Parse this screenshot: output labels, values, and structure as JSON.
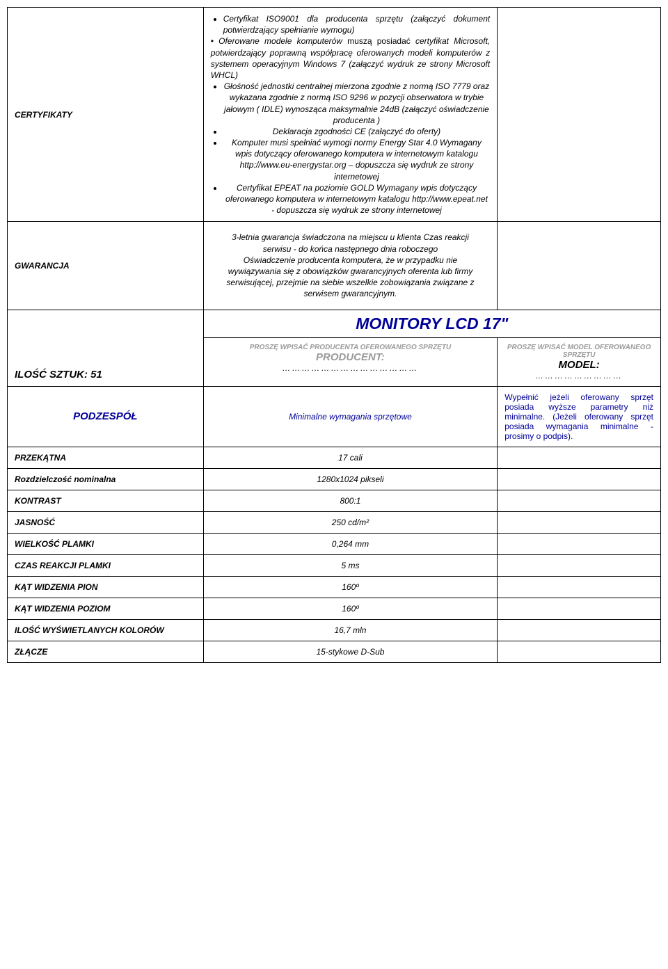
{
  "certifikaty": {
    "label": "CERTYFIKATY",
    "bullet1": "Certyfikat ISO9001 dla producenta sprzętu (załączyć dokument potwierdzający spełnianie wymogu)",
    "bullet2_lead": "•  Oferowane modele komputerów ",
    "bullet2_must": "muszą posiadać",
    "bullet2a": " certyfikat Microsoft, potwierdzający poprawną współpracę oferowanych modeli komputerów z systemem operacyjnym Windows 7 (załączyć wydruk ze strony Microsoft WHCL)",
    "bullet3": "Głośność jednostki centralnej mierzona zgodnie z normą ISO 7779 oraz wykazana zgodnie z normą ISO 9296 w pozycji obserwatora w trybie jałowym ( IDLE) wynosząca maksymalnie 24dB (załączyć oświadczenie producenta )",
    "bullet4": "Deklaracja zgodności CE (załączyć do oferty)",
    "bullet5": "Komputer musi spełniać wymogi normy Energy Star 4.0 Wymagany wpis dotyczący oferowanego komputera w  internetowym katalogu http://www.eu-energystar.org – dopuszcza się wydruk ze strony internetowej",
    "bullet6": "Certyfikat EPEAT na poziomie GOLD Wymagany wpis dotyczący oferowanego komputera w internetowym katalogu http://www.epeat.net - dopuszcza się wydruk ze strony internetowej"
  },
  "gwarancja": {
    "label": "GWARANCJA",
    "text": "3-letnia gwarancja świadczona na miejscu u klienta Czas reakcji serwisu - do końca następnego dnia roboczego\nOświadczenie producenta komputera, że w przypadku nie wywiązywania się z obowiązków gwarancyjnych oferenta lub firmy serwisującej, przejmie na siebie wszelkie zobowiązania związane z serwisem gwarancyjnym."
  },
  "monitor": {
    "title": "MONITORY LCD 17\"",
    "qty": "ILOŚĆ SZTUK: 51",
    "producent_prompt1": "PROSZĘ WPISAĆ PRODUCENTA OFEROWANEGO SPRZĘTU",
    "producent_label": "PRODUCENT:",
    "producent_dots": "……………………………………",
    "model_prompt1": "PROSZĘ WPISAĆ MODEL OFEROWANEGO SPRZĘTU",
    "model_label": "MODEL:",
    "model_dots": "………………………",
    "podzespol": "PODZESPÓŁ",
    "min_spec": "Minimalne wymagania sprzętowe",
    "note": "Wypełnić jeżeli oferowany sprzęt posiada wyższe parametry niż minimalne. (Jeżeli oferowany sprzęt posiada wymagania minimalne - prosimy o podpis)."
  },
  "specs": [
    {
      "label": "PRZEKĄTNA",
      "value": "17 cali"
    },
    {
      "label": "Rozdzielczość nominalna",
      "value": "1280x1024 pikseli"
    },
    {
      "label": "KONTRAST",
      "value": "800:1"
    },
    {
      "label": "JASNOŚĆ",
      "value": "250 cd/m²"
    },
    {
      "label": "WIELKOŚĆ PLAMKI",
      "value": "0,264 mm"
    },
    {
      "label": "CZAS REAKCJI PLAMKI",
      "value": "5 ms"
    },
    {
      "label": "KĄT WIDZENIA PION",
      "value": "160º"
    },
    {
      "label": "KĄT WIDZENIA POZIOM",
      "value": "160º"
    },
    {
      "label": "ILOŚĆ WYŚWIETLANYCH KOLORÓW",
      "value": "16,7 mln"
    },
    {
      "label": "ZŁĄCZE",
      "value": "15-stykowe D-Sub"
    }
  ]
}
